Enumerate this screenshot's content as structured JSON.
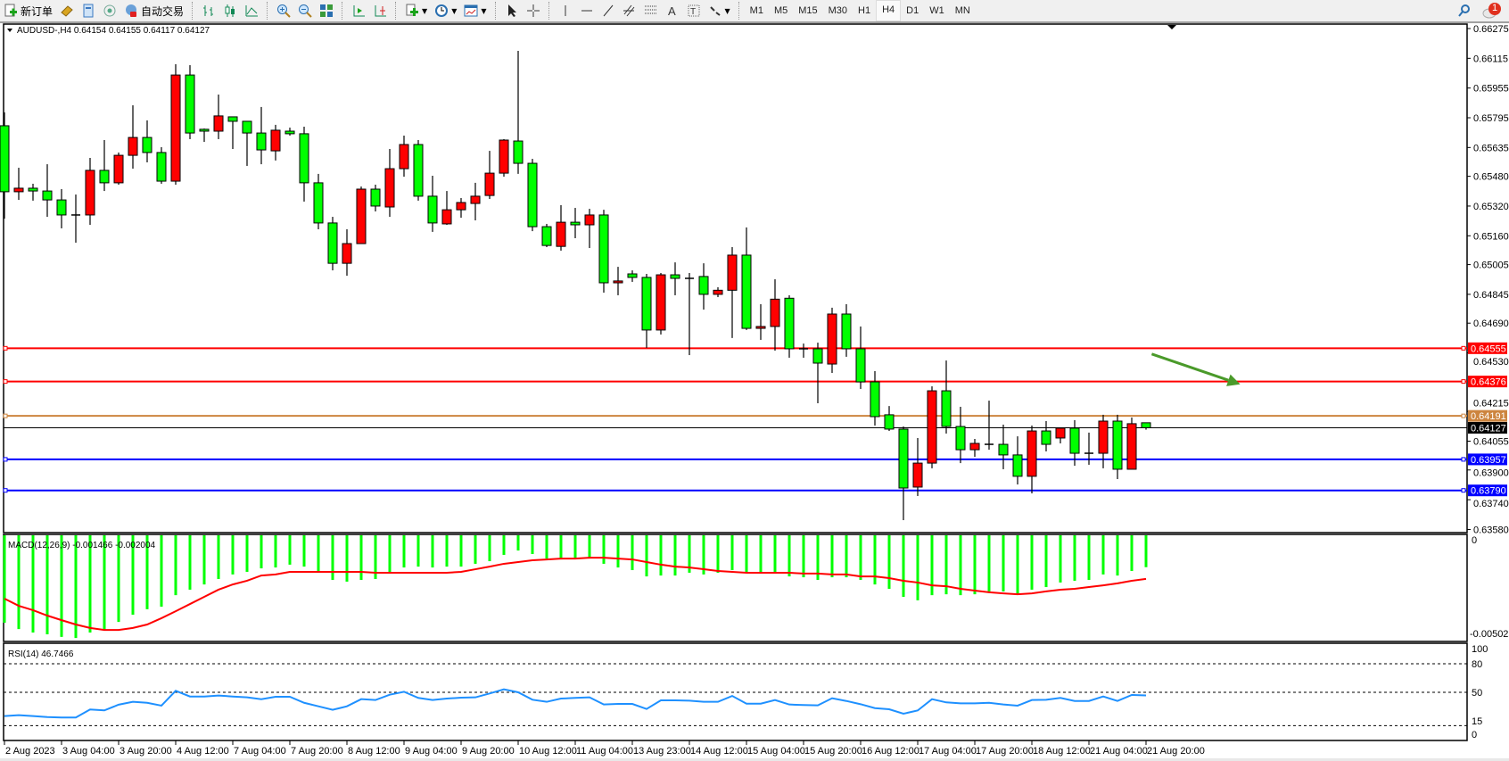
{
  "toolbar": {
    "new_order_label": "新订单",
    "auto_trade_label": "自动交易",
    "timeframes": [
      "M1",
      "M5",
      "M15",
      "M30",
      "H1",
      "H4",
      "D1",
      "W1",
      "MN"
    ],
    "active_timeframe": "H4",
    "notification_count": "1"
  },
  "chart_info": {
    "symbol_line": "AUDUSD-,H4  0.64154 0.64155 0.64117 0.64127",
    "macd_label": "MACD(12,26,9) -0.001466 -0.002004",
    "rsi_label": "RSI(14) 46.7466"
  },
  "colors": {
    "bull": "#ff0000",
    "bear": "#00ff00",
    "macd_hist": "#00ff00",
    "macd_signal": "#ff0000",
    "rsi": "#1e90ff",
    "arrow": "#4a9a2a"
  },
  "chart_data": {
    "type": "candlestick",
    "symbol": "AUDUSD-",
    "timeframe": "H4",
    "price_axis_ticks": [
      "0.66275",
      "0.66115",
      "0.65955",
      "0.65795",
      "0.65635",
      "0.65480",
      "0.65320",
      "0.65160",
      "0.65005",
      "0.64845",
      "0.64690",
      "0.64530",
      "0.64215",
      "0.64055",
      "0.63900",
      "0.63740",
      "0.63580"
    ],
    "ylim": [
      0.6358,
      0.66275
    ],
    "time_labels": [
      "2 Aug 2023",
      "3 Aug 04:00",
      "3 Aug 20:00",
      "4 Aug 12:00",
      "7 Aug 04:00",
      "7 Aug 20:00",
      "8 Aug 12:00",
      "9 Aug 04:00",
      "9 Aug 20:00",
      "10 Aug 12:00",
      "11 Aug 04:00",
      "13 Aug 23:00",
      "14 Aug 12:00",
      "15 Aug 04:00",
      "15 Aug 20:00",
      "16 Aug 12:00",
      "17 Aug 04:00",
      "17 Aug 20:00",
      "18 Aug 12:00",
      "21 Aug 04:00",
      "21 Aug 20:00"
    ],
    "time_label_every_n_bars": 4,
    "ohlc": [
      [
        0.65752,
        0.65824,
        0.65252,
        0.65397
      ],
      [
        0.65397,
        0.65526,
        0.65353,
        0.65416
      ],
      [
        0.65416,
        0.6544,
        0.65349,
        0.65401
      ],
      [
        0.65401,
        0.65545,
        0.65262,
        0.65353
      ],
      [
        0.65353,
        0.65411,
        0.652,
        0.65272
      ],
      [
        0.65272,
        0.65382,
        0.65123,
        0.65272
      ],
      [
        0.65272,
        0.65579,
        0.65219,
        0.65512
      ],
      [
        0.65512,
        0.65675,
        0.65401,
        0.65445
      ],
      [
        0.65445,
        0.65608,
        0.65435,
        0.65593
      ],
      [
        0.65593,
        0.65862,
        0.65521,
        0.65689
      ],
      [
        0.65689,
        0.65781,
        0.65555,
        0.65608
      ],
      [
        0.65608,
        0.65637,
        0.6544,
        0.65454
      ],
      [
        0.65454,
        0.66083,
        0.65435,
        0.66025
      ],
      [
        0.66025,
        0.66078,
        0.6568,
        0.65713
      ],
      [
        0.65733,
        0.65737,
        0.65665,
        0.65723
      ],
      [
        0.65723,
        0.6592,
        0.6568,
        0.65805
      ],
      [
        0.658,
        0.658,
        0.65627,
        0.65776
      ],
      [
        0.65776,
        0.65776,
        0.65536,
        0.65713
      ],
      [
        0.65713,
        0.65853,
        0.65545,
        0.65622
      ],
      [
        0.65617,
        0.65757,
        0.65565,
        0.65728
      ],
      [
        0.65723,
        0.65742,
        0.65699,
        0.65709
      ],
      [
        0.65709,
        0.65747,
        0.65344,
        0.65445
      ],
      [
        0.65445,
        0.65493,
        0.65195,
        0.65229
      ],
      [
        0.65229,
        0.65262,
        0.64974,
        0.65012
      ],
      [
        0.65012,
        0.65195,
        0.64945,
        0.65118
      ],
      [
        0.65118,
        0.65425,
        0.65118,
        0.65411
      ],
      [
        0.65411,
        0.65435,
        0.65291,
        0.6532
      ],
      [
        0.65315,
        0.65627,
        0.65262,
        0.65521
      ],
      [
        0.65521,
        0.65699,
        0.65478,
        0.65651
      ],
      [
        0.65651,
        0.65675,
        0.65349,
        0.65373
      ],
      [
        0.65373,
        0.65483,
        0.65181,
        0.65229
      ],
      [
        0.65224,
        0.65401,
        0.65219,
        0.653
      ],
      [
        0.653,
        0.65363,
        0.65257,
        0.65339
      ],
      [
        0.65334,
        0.65445,
        0.65243,
        0.65373
      ],
      [
        0.65377,
        0.65617,
        0.65358,
        0.65497
      ],
      [
        0.65497,
        0.6568,
        0.65478,
        0.65675
      ],
      [
        0.6567,
        0.66155,
        0.65493,
        0.6555
      ],
      [
        0.6555,
        0.65574,
        0.65185,
        0.65209
      ],
      [
        0.65209,
        0.65224,
        0.65099,
        0.65108
      ],
      [
        0.65103,
        0.65325,
        0.6508,
        0.65233
      ],
      [
        0.65233,
        0.6531,
        0.65147,
        0.65219
      ],
      [
        0.65219,
        0.65305,
        0.65094,
        0.65272
      ],
      [
        0.65272,
        0.653,
        0.64854,
        0.64907
      ],
      [
        0.64907,
        0.64993,
        0.6484,
        0.64917
      ],
      [
        0.64955,
        0.64974,
        0.64912,
        0.64936
      ],
      [
        0.64936,
        0.64955,
        0.64557,
        0.64653
      ],
      [
        0.64653,
        0.6496,
        0.64629,
        0.6495
      ],
      [
        0.6495,
        0.65017,
        0.6484,
        0.64931
      ],
      [
        0.64931,
        0.6496,
        0.64518,
        0.64931
      ],
      [
        0.64941,
        0.65012,
        0.64763,
        0.64845
      ],
      [
        0.64845,
        0.64883,
        0.6483,
        0.64867
      ],
      [
        0.64867,
        0.65099,
        0.6461,
        0.65056
      ],
      [
        0.65056,
        0.65205,
        0.64653,
        0.64662
      ],
      [
        0.64662,
        0.64792,
        0.646,
        0.64672
      ],
      [
        0.64672,
        0.64926,
        0.64542,
        0.64819
      ],
      [
        0.64824,
        0.6484,
        0.64504,
        0.64552
      ],
      [
        0.64552,
        0.6458,
        0.64504,
        0.64552
      ],
      [
        0.64552,
        0.64585,
        0.64259,
        0.64475
      ],
      [
        0.6447,
        0.64773,
        0.64422,
        0.64739
      ],
      [
        0.64739,
        0.64792,
        0.64509,
        0.64552
      ],
      [
        0.64552,
        0.64672,
        0.64336,
        0.64374
      ],
      [
        0.64374,
        0.64432,
        0.64139,
        0.64187
      ],
      [
        0.64197,
        0.64244,
        0.6411,
        0.6412
      ],
      [
        0.6412,
        0.64134,
        0.6363,
        0.63803
      ],
      [
        0.63808,
        0.64072,
        0.6376,
        0.63937
      ],
      [
        0.63937,
        0.6435,
        0.63909,
        0.64326
      ],
      [
        0.64326,
        0.64489,
        0.64096,
        0.64134
      ],
      [
        0.64134,
        0.6424,
        0.63937,
        0.64009
      ],
      [
        0.64009,
        0.64067,
        0.63971,
        0.64043
      ],
      [
        0.64038,
        0.64273,
        0.64009,
        0.64038
      ],
      [
        0.64038,
        0.64144,
        0.63904,
        0.63981
      ],
      [
        0.63981,
        0.64081,
        0.63822,
        0.63866
      ],
      [
        0.63866,
        0.64139,
        0.63774,
        0.6411
      ],
      [
        0.6411,
        0.64163,
        0.64,
        0.64038
      ],
      [
        0.64072,
        0.64129,
        0.64043,
        0.64125
      ],
      [
        0.64125,
        0.64168,
        0.63923,
        0.6399
      ],
      [
        0.6399,
        0.64101,
        0.63928,
        0.6399
      ],
      [
        0.6399,
        0.64197,
        0.63909,
        0.64163
      ],
      [
        0.64163,
        0.64197,
        0.63851,
        0.63904
      ],
      [
        0.63904,
        0.64182,
        0.63904,
        0.64149
      ],
      [
        0.64154,
        0.64155,
        0.64117,
        0.64127
      ]
    ],
    "current_price": {
      "value": "0.64127",
      "color": "#000000"
    },
    "horizontal_lines": [
      {
        "value": "0.64555",
        "color": "#ff0000"
      },
      {
        "value": "0.64376",
        "color": "#ff0000"
      },
      {
        "value": "0.64191",
        "color": "#cd853f"
      },
      {
        "value": "0.63957",
        "color": "#0000ff"
      },
      {
        "value": "0.63790",
        "color": "#0000ff"
      }
    ],
    "annotations": [
      {
        "type": "arrow",
        "from_bar": 80.4,
        "from_price": 0.64524,
        "to_bar": 86.6,
        "to_price": 0.64361,
        "color": "#4a9a2a"
      }
    ],
    "macd": {
      "params": "12,26,9",
      "axis_labels": [
        "0",
        "-0.005025"
      ],
      "ylim": [
        -0.005025,
        0
      ],
      "histogram": [
        -0.00402,
        -0.00431,
        -0.00447,
        -0.00455,
        -0.00467,
        -0.00472,
        -0.00447,
        -0.00435,
        -0.00398,
        -0.00365,
        -0.0034,
        -0.00328,
        -0.00275,
        -0.0025,
        -0.00226,
        -0.00201,
        -0.0018,
        -0.00168,
        -0.00152,
        -0.00148,
        -0.00135,
        -0.00144,
        -0.00164,
        -0.00205,
        -0.00213,
        -0.00205,
        -0.00201,
        -0.00168,
        -0.00148,
        -0.00144,
        -0.00148,
        -0.00144,
        -0.00144,
        -0.00131,
        -0.00119,
        -0.0009,
        -0.0007,
        -0.00086,
        -0.00107,
        -0.00111,
        -0.00107,
        -0.00107,
        -0.00131,
        -0.00148,
        -0.0016,
        -0.00189,
        -0.00185,
        -0.00185,
        -0.00172,
        -0.0018,
        -0.00172,
        -0.0016,
        -0.00168,
        -0.00176,
        -0.00168,
        -0.00189,
        -0.00193,
        -0.00205,
        -0.00193,
        -0.00193,
        -0.00205,
        -0.00226,
        -0.00246,
        -0.00283,
        -0.00299,
        -0.00275,
        -0.00271,
        -0.00275,
        -0.00271,
        -0.00258,
        -0.00258,
        -0.00271,
        -0.0025,
        -0.00238,
        -0.00217,
        -0.00209,
        -0.00205,
        -0.0018,
        -0.00185,
        -0.00164,
        -0.001466
      ],
      "signal": [
        -0.00291,
        -0.00324,
        -0.00344,
        -0.00369,
        -0.0039,
        -0.0041,
        -0.00426,
        -0.00435,
        -0.00435,
        -0.00426,
        -0.0041,
        -0.00381,
        -0.00349,
        -0.00316,
        -0.00283,
        -0.0025,
        -0.00226,
        -0.00209,
        -0.00185,
        -0.0018,
        -0.00168,
        -0.00168,
        -0.00168,
        -0.00168,
        -0.00168,
        -0.00168,
        -0.00172,
        -0.00172,
        -0.00172,
        -0.00172,
        -0.00172,
        -0.00172,
        -0.00168,
        -0.00156,
        -0.00144,
        -0.00131,
        -0.00123,
        -0.00115,
        -0.00111,
        -0.00107,
        -0.00107,
        -0.00103,
        -0.00103,
        -0.00107,
        -0.00111,
        -0.00123,
        -0.00135,
        -0.00144,
        -0.00148,
        -0.00156,
        -0.00164,
        -0.00168,
        -0.00172,
        -0.00172,
        -0.00172,
        -0.00172,
        -0.00176,
        -0.00176,
        -0.0018,
        -0.0018,
        -0.00189,
        -0.00189,
        -0.00197,
        -0.00209,
        -0.00217,
        -0.0023,
        -0.00234,
        -0.00246,
        -0.00254,
        -0.00262,
        -0.00267,
        -0.00271,
        -0.00267,
        -0.00258,
        -0.0025,
        -0.00246,
        -0.00238,
        -0.0023,
        -0.00221,
        -0.00209,
        -0.002004
      ]
    },
    "rsi": {
      "period": 14,
      "axis_labels": [
        "100",
        "80",
        "50",
        "15",
        "0"
      ],
      "levels": [
        80,
        50,
        15
      ],
      "ylim": [
        0,
        100
      ],
      "values": [
        25,
        26,
        25,
        24,
        23.5,
        23.5,
        32,
        31,
        37,
        40,
        39,
        36,
        51.6,
        45.6,
        45.6,
        46.6,
        45.6,
        44.7,
        42.8,
        45.3,
        45.3,
        39,
        35.3,
        31.6,
        35.3,
        42.8,
        41.9,
        47.5,
        50.6,
        44.1,
        41.9,
        43.4,
        44.4,
        44.7,
        48.8,
        53.1,
        50,
        42.2,
        40,
        43.4,
        44.1,
        44.7,
        37.2,
        37.8,
        37.8,
        32.5,
        41.6,
        41.6,
        41.2,
        40,
        40,
        46.2,
        38.1,
        38.1,
        41.9,
        37.2,
        36.6,
        36.3,
        43.8,
        40.9,
        37.5,
        33.4,
        32.2,
        27.5,
        30.9,
        42.8,
        39.4,
        38.4,
        38.4,
        39,
        37.2,
        36,
        41.9,
        42.2,
        44.1,
        40.9,
        40.9,
        45.6,
        40.9,
        47.2,
        46.7466
      ]
    }
  }
}
